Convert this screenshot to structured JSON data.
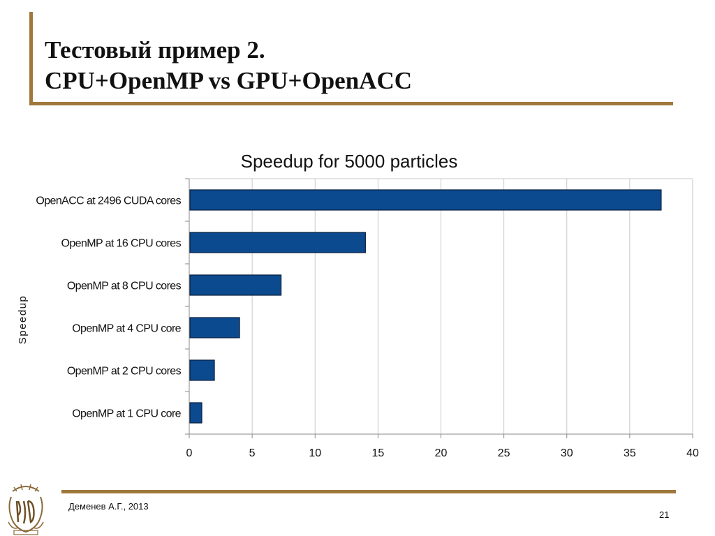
{
  "slide": {
    "title_line1": "Тестовый пример 2.",
    "title_line2": "CPU+OpenMP vs GPU+OpenACC",
    "author": "Деменев А.Г., 2013",
    "page_number": "21",
    "accent_color": "#a0783c"
  },
  "chart_data": {
    "type": "bar",
    "orientation": "horizontal",
    "title": "Speedup for 5000 particles",
    "ylabel": "Speedup",
    "xlabel": "",
    "categories": [
      "OpenACC at 2496 CUDA cores",
      "OpenMP at 16 CPU cores",
      "OpenMP at 8 CPU cores",
      "OpenMP at 4 CPU core",
      "OpenMP at 2 CPU cores",
      "OpenMP at 1 CPU core"
    ],
    "values": [
      37.5,
      14.0,
      7.3,
      4.0,
      2.0,
      1.0
    ],
    "xlim": [
      0,
      40
    ],
    "xticks": [
      0,
      5,
      10,
      15,
      20,
      25,
      30,
      35,
      40
    ],
    "grid": true,
    "bar_color": "#0b4a8f"
  }
}
